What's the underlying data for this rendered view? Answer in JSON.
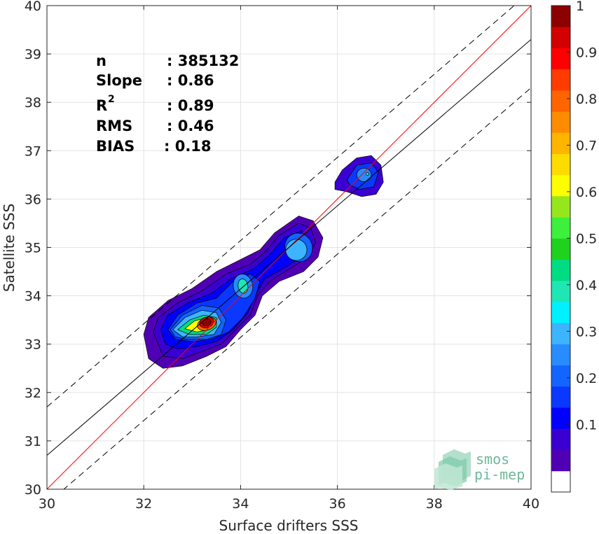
{
  "chart_data": {
    "type": "contour-density-scatter",
    "xlabel": "Surface drifters SSS",
    "ylabel": "Satellite SSS",
    "xlim": [
      30,
      40
    ],
    "ylim": [
      30,
      40
    ],
    "xticks": [
      "30",
      "32",
      "34",
      "36",
      "38",
      "40"
    ],
    "yticks": [
      "30",
      "31",
      "32",
      "33",
      "34",
      "35",
      "36",
      "37",
      "38",
      "39",
      "40"
    ],
    "grid": true,
    "stats": [
      {
        "label": "n",
        "value": ": 385132"
      },
      {
        "label": "Slope",
        "value": ": 0.86"
      },
      {
        "label": "R",
        "sup": "2",
        "value": ": 0.89"
      },
      {
        "label": "RMS",
        "value": ": 0.46"
      },
      {
        "label": "BIAS",
        "value": ": 0.18"
      }
    ],
    "reference_lines": [
      {
        "kind": "one-to-one",
        "color": "#ff0000",
        "slope": 1.0,
        "intercept": 0.0
      },
      {
        "kind": "regression",
        "color": "#000000",
        "slope": 0.86,
        "intercept": 4.9
      },
      {
        "kind": "upper-bound",
        "color": "#000000",
        "dashed": true,
        "slope": 0.86,
        "intercept": 5.9
      },
      {
        "kind": "lower-bound",
        "color": "#000000",
        "dashed": true,
        "slope": 0.86,
        "intercept": 3.9
      }
    ],
    "density_peaks": [
      {
        "x": 33.3,
        "y": 33.45,
        "density": 1.0
      },
      {
        "x": 34.05,
        "y": 34.2,
        "density": 0.4
      },
      {
        "x": 35.2,
        "y": 35.0,
        "density": 0.33
      },
      {
        "x": 36.6,
        "y": 36.5,
        "density": 0.33
      }
    ],
    "colorbar": {
      "min": 0,
      "max": 1,
      "ticks": [
        "0.1",
        "0.2",
        "0.3",
        "0.4",
        "0.5",
        "0.6",
        "0.7",
        "0.8",
        "0.9",
        "1"
      ],
      "levels": [
        "#ffffff",
        "#5000b4",
        "#3a00d2",
        "#0000ff",
        "#0a38ff",
        "#1464ff",
        "#288cff",
        "#3cb4ff",
        "#00f0ff",
        "#1ee6b4",
        "#00dc82",
        "#1ed21e",
        "#3cf03c",
        "#96e61e",
        "#ffff00",
        "#ffdc00",
        "#ffb400",
        "#ff8c00",
        "#ff6400",
        "#ff3c00",
        "#ff0000",
        "#d20000",
        "#8c0000"
      ]
    },
    "logo": {
      "line1": "smos",
      "line2": "pi-mep"
    }
  }
}
